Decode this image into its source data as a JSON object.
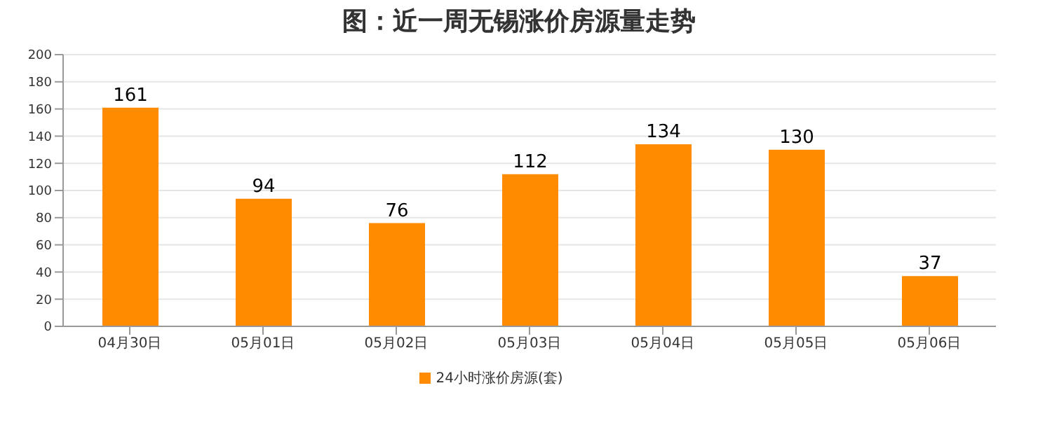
{
  "chart_data": {
    "type": "bar",
    "title": "图：近一周无锡涨价房源量走势",
    "categories": [
      "04月30日",
      "05月01日",
      "05月02日",
      "05月03日",
      "05月04日",
      "05月05日",
      "05月06日"
    ],
    "series": [
      {
        "name": "24小时涨价房源(套)",
        "color": "#ff8c00",
        "values": [
          161,
          94,
          76,
          112,
          134,
          130,
          37
        ]
      }
    ],
    "ylim": [
      0,
      200
    ],
    "yticks": [
      0,
      20,
      40,
      60,
      80,
      100,
      120,
      140,
      160,
      180,
      200
    ],
    "grid": "y",
    "legend": "bottom",
    "data_labels": true
  }
}
